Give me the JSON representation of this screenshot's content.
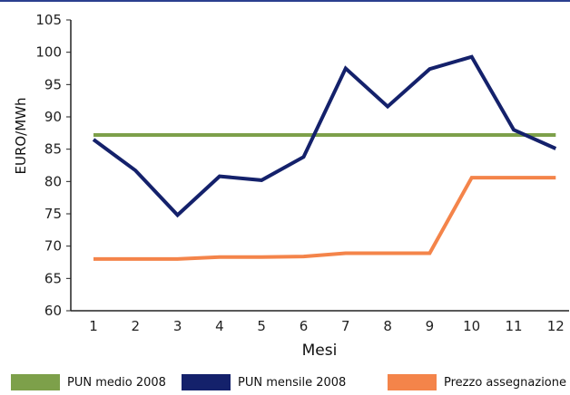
{
  "chart_data": {
    "type": "line",
    "title": "",
    "xlabel": "Mesi",
    "ylabel": "EURO/MWh",
    "categories": [
      "1",
      "2",
      "3",
      "4",
      "5",
      "6",
      "7",
      "8",
      "9",
      "10",
      "11",
      "12"
    ],
    "ylim": [
      60,
      105
    ],
    "yticks": [
      "60",
      "65",
      "70",
      "75",
      "80",
      "85",
      "90",
      "95",
      "100",
      "105"
    ],
    "grid": false,
    "legend_position": "bottom",
    "series": [
      {
        "name": "PUN medio 2008",
        "color": "#7da04a",
        "values": [
          87.2,
          87.2,
          87.2,
          87.2,
          87.2,
          87.2,
          87.2,
          87.2,
          87.2,
          87.2,
          87.2,
          87.2
        ]
      },
      {
        "name": "PUN mensile 2008",
        "color": "#14216b",
        "values": [
          86.5,
          81.7,
          74.8,
          80.8,
          80.2,
          83.8,
          97.5,
          91.6,
          97.4,
          99.3,
          88.0,
          85.1
        ]
      },
      {
        "name": "Prezzo assegnazione",
        "color": "#f4844a",
        "values": [
          68.0,
          68.0,
          68.0,
          68.3,
          68.3,
          68.4,
          68.9,
          68.9,
          68.9,
          80.6,
          80.6,
          80.6
        ]
      }
    ]
  }
}
